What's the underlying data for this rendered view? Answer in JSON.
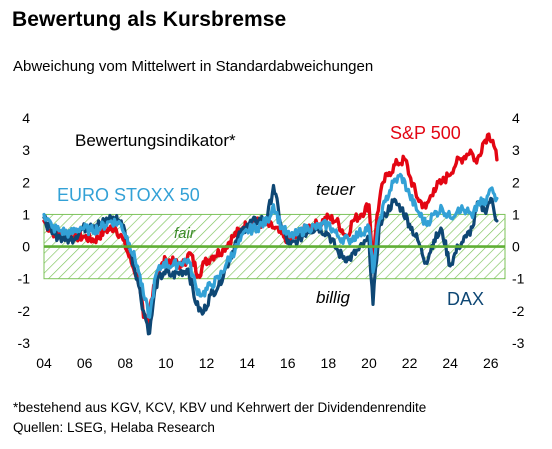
{
  "title": "Bewertung als Kursbremse",
  "subtitle": "Abweichung vom Mittelwert in Standardabweichungen",
  "footnote": {
    "line1": "*bestehend aus KGV, KCV, KBV und Kehrwert der Dividendenrendite",
    "line2": "Quellen: LSEG, Helaba Research"
  },
  "colors": {
    "sp500": "#e30613",
    "eurostoxx": "#33a1d6",
    "dax": "#0e4774",
    "fair_band": "#7cc35a",
    "zero_line": "#5fae34"
  },
  "chart_data": {
    "type": "line",
    "title": "",
    "xlabel": "",
    "ylabel": "",
    "x_range": [
      2004,
      2026.6
    ],
    "ylim": [
      -3,
      4
    ],
    "x_ticks": [
      "04",
      "06",
      "08",
      "10",
      "12",
      "14",
      "16",
      "18",
      "20",
      "22",
      "24",
      "26"
    ],
    "y_ticks_left": [
      "4",
      "3",
      "2",
      "1",
      "0",
      "-1",
      "-2",
      "-3"
    ],
    "y_ticks_right": [
      "4",
      "3",
      "2",
      "1",
      "0",
      "-1",
      "-2",
      "-3"
    ],
    "grid": false,
    "fair_band": [
      -1,
      1
    ],
    "annotations": {
      "indicator": "Bewertungsindikator*",
      "fair": "fair",
      "teuer": "teuer",
      "billig": "billig"
    },
    "series": [
      {
        "name": "S&P 500",
        "x": [
          2004.0,
          2004.3,
          2004.6,
          2005.0,
          2005.5,
          2006.0,
          2006.5,
          2007.0,
          2007.5,
          2007.9,
          2008.3,
          2008.7,
          2008.9,
          2009.1,
          2009.4,
          2009.7,
          2010.0,
          2010.4,
          2010.8,
          2011.2,
          2011.6,
          2011.9,
          2012.3,
          2012.8,
          2013.3,
          2013.8,
          2014.3,
          2014.8,
          2015.3,
          2015.8,
          2016.2,
          2016.6,
          2017.0,
          2017.5,
          2018.0,
          2018.4,
          2018.9,
          2019.2,
          2019.6,
          2020.0,
          2020.2,
          2020.4,
          2020.7,
          2021.0,
          2021.4,
          2021.8,
          2022.0,
          2022.4,
          2022.8,
          2023.2,
          2023.6,
          2023.9,
          2024.3,
          2024.7,
          2025.0,
          2025.3,
          2025.6,
          2025.9,
          2026.1,
          2026.3
        ],
        "y": [
          0.8,
          0.5,
          0.4,
          0.4,
          0.3,
          0.3,
          0.2,
          0.5,
          0.6,
          0.2,
          -0.5,
          -1.1,
          -2.2,
          -2.4,
          -1.2,
          -0.7,
          -0.4,
          -0.5,
          -0.6,
          -0.2,
          -0.9,
          -0.5,
          -0.3,
          -0.1,
          0.3,
          0.6,
          0.8,
          0.7,
          0.6,
          0.3,
          0.2,
          0.4,
          0.6,
          0.7,
          0.9,
          0.8,
          0.3,
          0.8,
          1.0,
          1.3,
          -0.6,
          1.0,
          2.0,
          2.3,
          2.6,
          2.7,
          2.2,
          1.5,
          1.2,
          1.8,
          2.0,
          2.2,
          2.6,
          2.8,
          3.0,
          2.6,
          3.2,
          3.5,
          3.3,
          2.7
        ]
      },
      {
        "name": "EURO STOXX 50",
        "x": [
          2004.0,
          2004.4,
          2004.8,
          2005.3,
          2005.8,
          2006.3,
          2006.8,
          2007.3,
          2007.8,
          2008.2,
          2008.6,
          2008.9,
          2009.2,
          2009.5,
          2009.9,
          2010.3,
          2010.7,
          2011.1,
          2011.5,
          2011.8,
          2012.2,
          2012.6,
          2013.0,
          2013.5,
          2014.0,
          2014.5,
          2015.0,
          2015.3,
          2015.7,
          2016.1,
          2016.5,
          2017.0,
          2017.5,
          2018.0,
          2018.5,
          2019.0,
          2019.5,
          2020.0,
          2020.2,
          2020.5,
          2020.8,
          2021.2,
          2021.6,
          2022.0,
          2022.4,
          2022.8,
          2023.2,
          2023.6,
          2024.0,
          2024.4,
          2024.8,
          2025.1,
          2025.4,
          2025.7,
          2026.0,
          2026.3
        ],
        "y": [
          1.0,
          0.6,
          0.5,
          0.4,
          0.6,
          0.5,
          0.6,
          0.8,
          0.7,
          0.1,
          -0.6,
          -1.5,
          -2.2,
          -0.9,
          -0.5,
          -0.6,
          -0.5,
          -0.4,
          -1.3,
          -1.5,
          -1.2,
          -1.0,
          -0.5,
          0.0,
          0.5,
          0.6,
          0.8,
          1.3,
          0.6,
          0.3,
          0.4,
          0.6,
          0.6,
          0.7,
          0.3,
          0.2,
          0.4,
          0.6,
          -0.8,
          0.8,
          1.4,
          2.0,
          2.2,
          1.6,
          1.1,
          0.7,
          1.0,
          1.2,
          0.9,
          1.2,
          1.1,
          0.9,
          1.4,
          1.3,
          1.8,
          1.5
        ]
      },
      {
        "name": "DAX",
        "x": [
          2004.0,
          2004.4,
          2004.8,
          2005.3,
          2005.8,
          2006.3,
          2006.8,
          2007.3,
          2007.8,
          2008.2,
          2008.6,
          2008.9,
          2009.2,
          2009.5,
          2009.9,
          2010.3,
          2010.7,
          2011.1,
          2011.5,
          2011.8,
          2012.2,
          2012.6,
          2013.0,
          2013.5,
          2014.0,
          2014.5,
          2015.0,
          2015.3,
          2015.7,
          2016.1,
          2016.5,
          2017.0,
          2017.5,
          2018.0,
          2018.5,
          2019.0,
          2019.5,
          2020.0,
          2020.2,
          2020.5,
          2020.8,
          2021.2,
          2021.6,
          2022.0,
          2022.4,
          2022.8,
          2023.2,
          2023.6,
          2024.0,
          2024.4,
          2024.8,
          2025.1,
          2025.4,
          2025.7,
          2026.0,
          2026.3
        ],
        "y": [
          0.9,
          0.4,
          0.3,
          0.2,
          0.5,
          0.7,
          0.7,
          0.9,
          0.8,
          0.0,
          -1.0,
          -2.0,
          -2.7,
          -1.2,
          -0.8,
          -0.9,
          -0.8,
          -0.7,
          -1.8,
          -2.1,
          -1.5,
          -1.2,
          -0.6,
          0.2,
          0.7,
          0.8,
          0.9,
          1.9,
          0.6,
          0.0,
          0.2,
          0.5,
          0.6,
          0.4,
          -0.2,
          -0.4,
          -0.1,
          0.2,
          -1.8,
          0.6,
          1.0,
          1.4,
          1.2,
          0.7,
          0.2,
          -0.5,
          0.2,
          0.5,
          -0.6,
          0.0,
          0.3,
          0.6,
          1.4,
          1.1,
          1.5,
          0.8
        ]
      }
    ]
  }
}
